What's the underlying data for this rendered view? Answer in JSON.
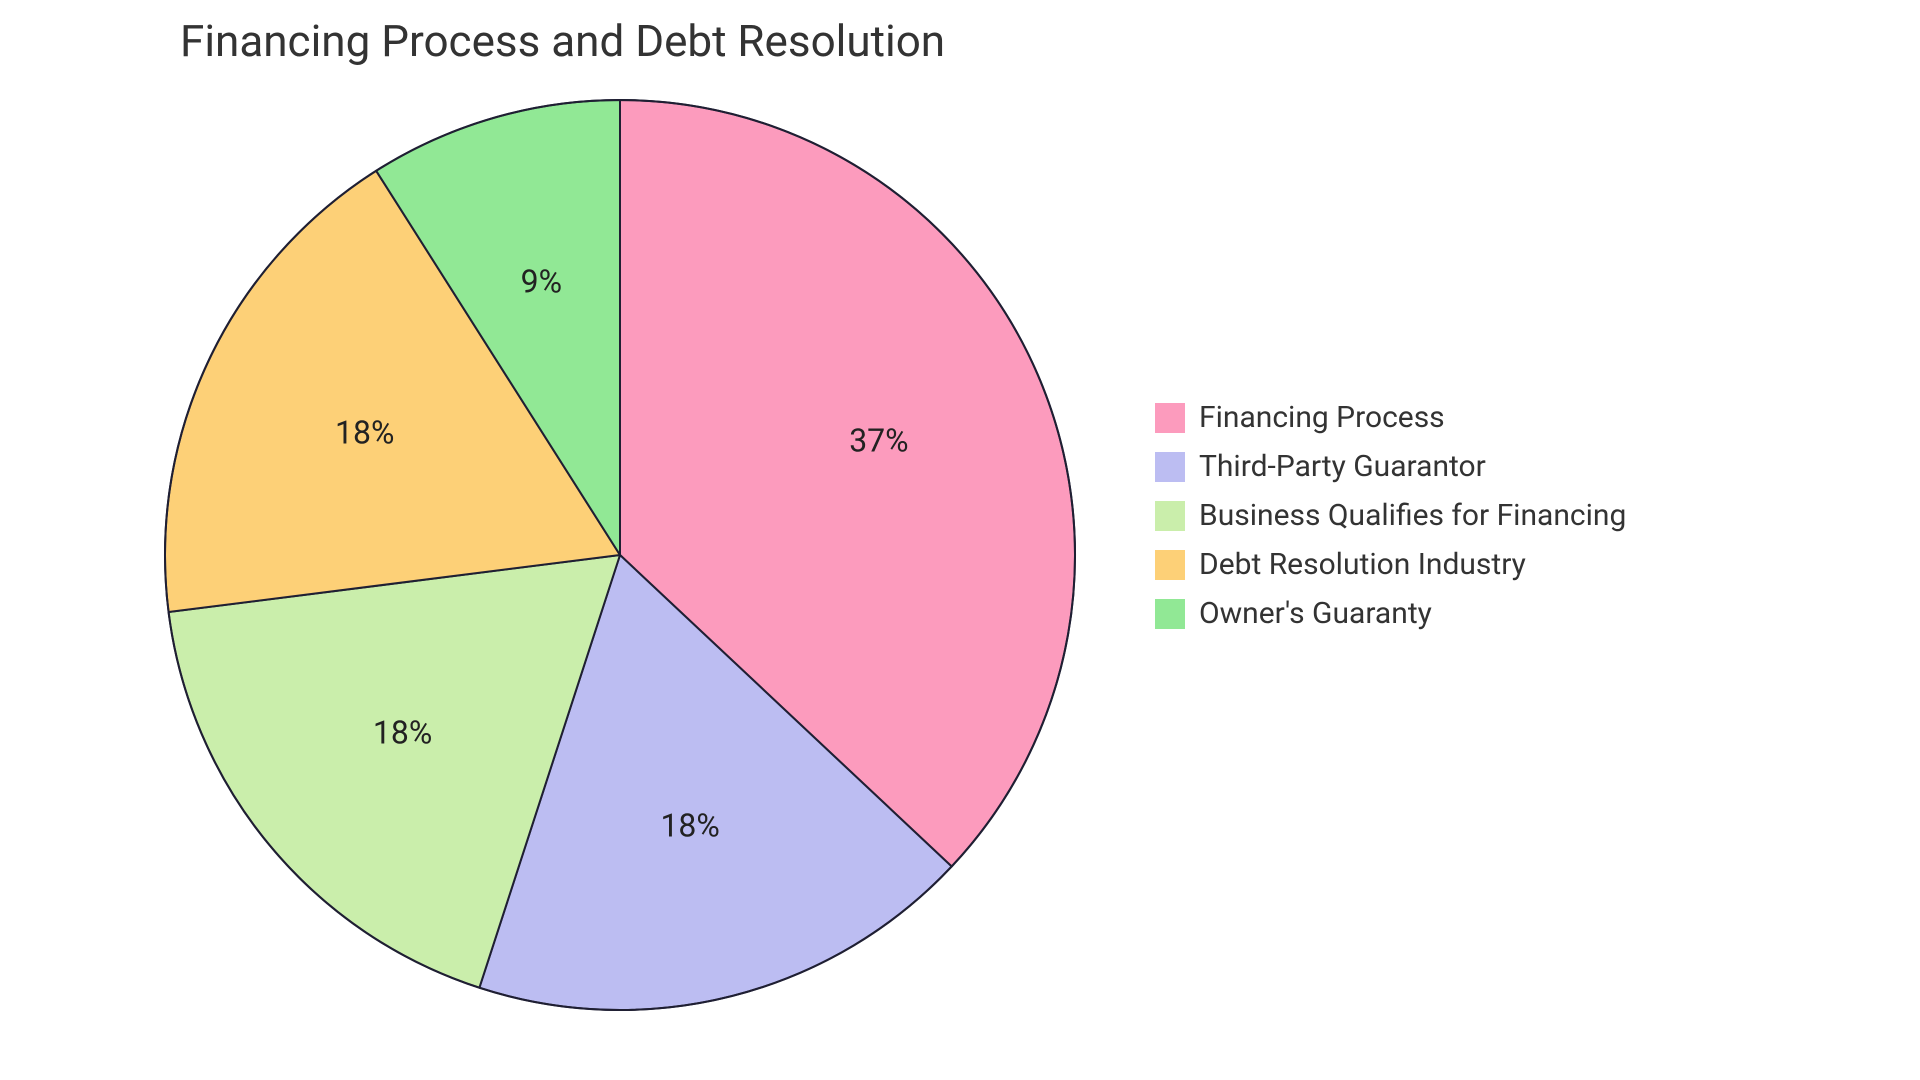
{
  "chart": {
    "type": "pie",
    "title": "Financing Process and Debt Resolution",
    "title_fontsize": 44,
    "title_color": "#333333",
    "background_color": "#ffffff",
    "stroke_color": "#1f1f33",
    "stroke_width": 2,
    "label_fontsize": 32,
    "label_color": "#222222",
    "legend_fontsize": 30,
    "legend_color": "#333333",
    "start_angle_deg": -90,
    "slices": [
      {
        "label": "Financing Process",
        "value": 37,
        "display": "37%",
        "color": "#fc9bbd"
      },
      {
        "label": "Third-Party Guarantor",
        "value": 18,
        "display": "18%",
        "color": "#bcbdf2"
      },
      {
        "label": "Business Qualifies for Financing",
        "value": 18,
        "display": "18%",
        "color": "#caeeab"
      },
      {
        "label": "Debt Resolution Industry",
        "value": 18,
        "display": "18%",
        "color": "#fdd077"
      },
      {
        "label": "Owner's Guaranty",
        "value": 9,
        "display": "9%",
        "color": "#91e895"
      }
    ]
  }
}
